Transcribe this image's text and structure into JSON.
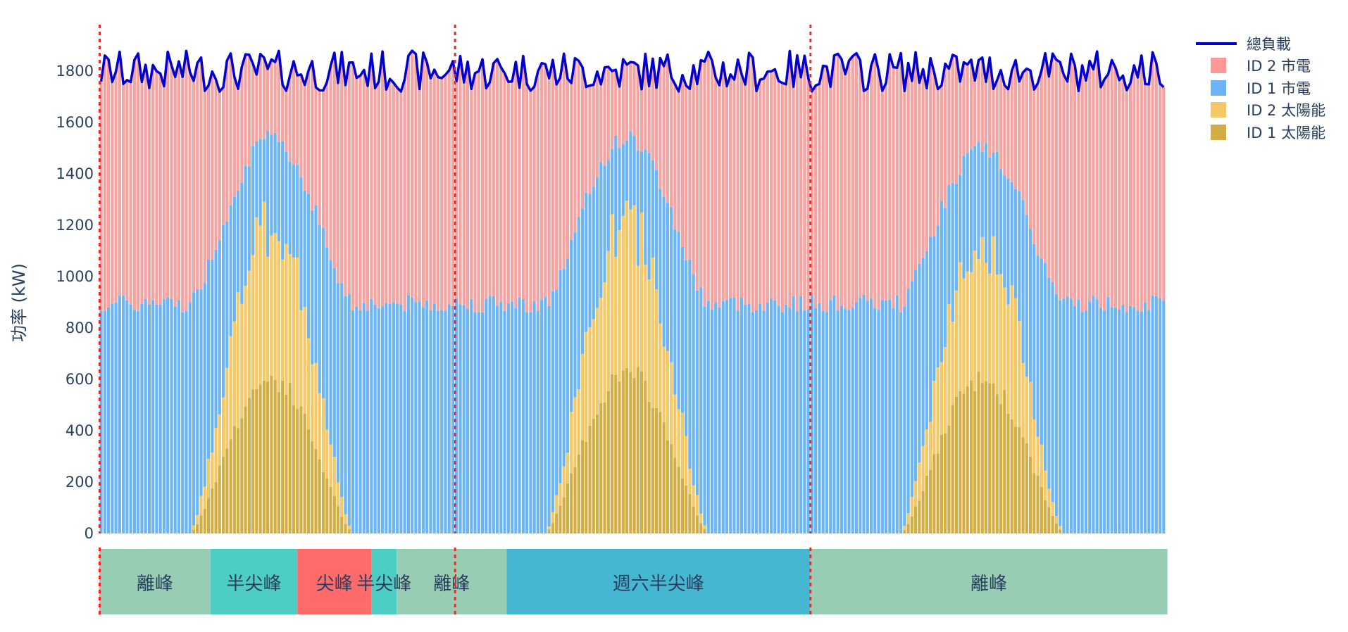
{
  "chart_data": {
    "type": "bar",
    "barmode": "stack",
    "title": "",
    "xlabel": "",
    "ylabel": "功率 (kW)",
    "ylim": [
      0,
      1990
    ],
    "yticks": [
      0,
      200,
      400,
      600,
      800,
      1000,
      1200,
      1400,
      1600,
      1800
    ],
    "interval_minutes": 15,
    "n_points": 288,
    "day_boundaries_index": [
      0,
      96,
      192
    ],
    "legend": [
      {
        "name": "總負載",
        "kind": "line",
        "color": "#0000d0"
      },
      {
        "name": "ID 2 市電",
        "kind": "bar",
        "color": "#ff9896"
      },
      {
        "name": "ID 1 市電",
        "kind": "bar",
        "color": "#6bb5f7"
      },
      {
        "name": "ID 2 太陽能",
        "kind": "bar",
        "color": "#f5c765"
      },
      {
        "name": "ID 1 太陽能",
        "kind": "bar",
        "color": "#d2ad43"
      }
    ],
    "series_description": "Stacked order bottom→top: ID 1 太陽能, ID 2 太陽能, ID 1 市電, ID 2 市電; line 總負載 overlays total. Values estimated from pixels, three daily profiles.",
    "daily_profile": {
      "id1_load_base_kW": 900,
      "id2_load_base_kW": 900,
      "total_load_range_kW": [
        1720,
        1880
      ],
      "solar_window_index_in_day": [
        24,
        68
      ],
      "id1_solar_peak_kW": [
        615,
        640,
        610
      ],
      "solar_total_peak_kW": [
        1250,
        1265,
        1205
      ],
      "id1_stack_top_peak_kW": [
        1540,
        1545,
        1500
      ]
    },
    "tou_periods": [
      {
        "label": "離峰",
        "start": 0,
        "end": 30,
        "color": "#97cdb3"
      },
      {
        "label": "半尖峰",
        "start": 30,
        "end": 53.5,
        "color": "#4ecdc4"
      },
      {
        "label": "尖峰",
        "start": 53.5,
        "end": 73.5,
        "color": "#ff6b6b"
      },
      {
        "label": "半尖峰",
        "start": 73.5,
        "end": 80.3,
        "color": "#4ecdc4"
      },
      {
        "label": "離峰",
        "start": 80.3,
        "end": 110,
        "color": "#97cdb3"
      },
      {
        "label": "週六半尖峰",
        "start": 110,
        "end": 192,
        "color": "#45b7d1"
      },
      {
        "label": "離峰",
        "start": 192,
        "end": 288.5,
        "color": "#97cdb3"
      }
    ],
    "day_divider_color": "#ff2020"
  },
  "axis": {
    "ylabel": "功率 (kW)",
    "ticks": [
      "0",
      "200",
      "400",
      "600",
      "800",
      "1000",
      "1200",
      "1400",
      "1600",
      "1800"
    ]
  },
  "legend": {
    "items": [
      {
        "label": "總負載",
        "color": "#0000d0"
      },
      {
        "label": "ID 2 市電",
        "color": "#ff9896"
      },
      {
        "label": "ID 1 市電",
        "color": "#6bb5f7"
      },
      {
        "label": "ID 2 太陽能",
        "color": "#f5c765"
      },
      {
        "label": "ID 1 太陽能",
        "color": "#d2ad43"
      }
    ]
  }
}
